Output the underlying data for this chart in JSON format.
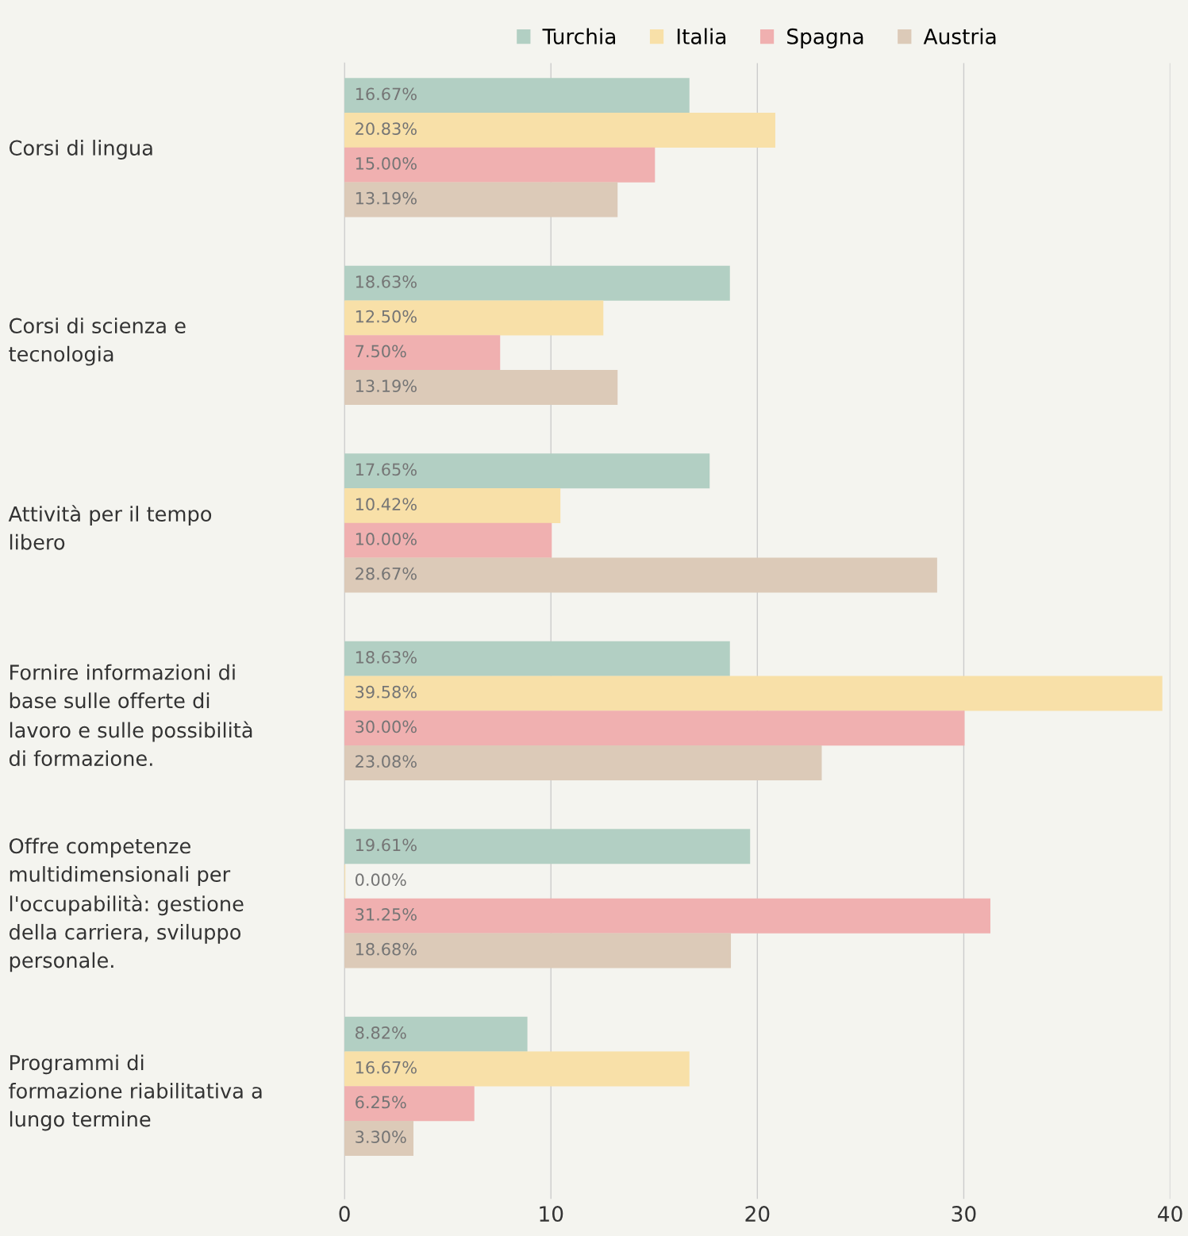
{
  "chart_data": {
    "type": "bar",
    "orientation": "horizontal",
    "categories": [
      "Corsi di lingua",
      "Corsi di scienza e\ntecnologia",
      "Attività per il tempo\nlibero",
      "Fornire informazioni di\nbase sulle offerte di\nlavoro e sulle possibilità\ndi formazione.",
      "Offre competenze\nmultidimensionali per\nl'occupabilità: gestione\ndella carriera, sviluppo\npersonale.",
      "Programmi di\nformazione riabilitativa a\nlungo termine"
    ],
    "series": [
      {
        "name": "Turchia",
        "color": "#b2cfc3",
        "values": [
          16.67,
          18.63,
          17.65,
          18.63,
          19.61,
          8.82
        ],
        "value_labels": [
          "16.67%",
          "18.63%",
          "17.65%",
          "18.63%",
          "19.61%",
          "8.82%"
        ]
      },
      {
        "name": "Italia",
        "color": "#f8e0a8",
        "values": [
          20.83,
          12.5,
          10.42,
          39.58,
          0,
          16.67
        ],
        "value_labels": [
          "20.83%",
          "12.50%",
          "10.42%",
          "39.58%",
          "0.00%",
          "16.67%"
        ]
      },
      {
        "name": "Spagna",
        "color": "#f0b0b0",
        "values": [
          15.0,
          7.5,
          10.0,
          30.0,
          31.25,
          6.25
        ],
        "value_labels": [
          "15.00%",
          "7.50%",
          "10.00%",
          "30.00%",
          "31.25%",
          "6.25%"
        ]
      },
      {
        "name": "Austria",
        "color": "#dccab8",
        "values": [
          13.19,
          13.19,
          28.67,
          23.08,
          18.68,
          3.3
        ],
        "value_labels": [
          "13.19%",
          "13.19%",
          "28.67%",
          "23.08%",
          "18.68%",
          "3.30%"
        ]
      }
    ],
    "xlim": [
      0,
      40
    ],
    "xticks": [
      0,
      10,
      20,
      30,
      40
    ],
    "grid": "x",
    "legend": "top"
  }
}
